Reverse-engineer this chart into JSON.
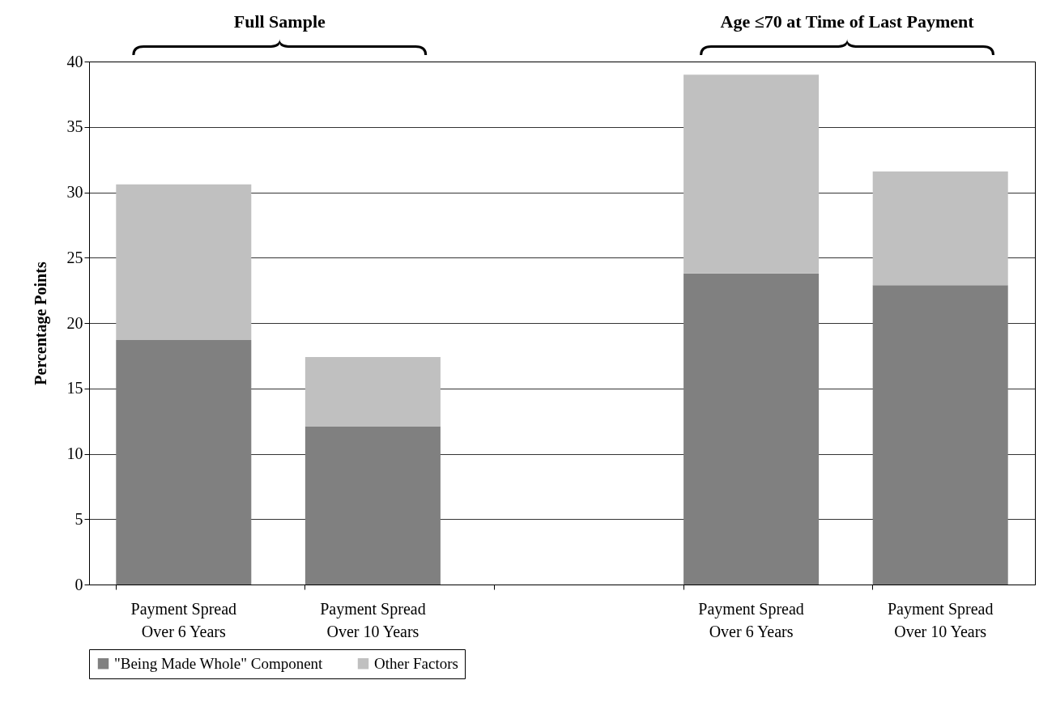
{
  "chart_data": {
    "type": "bar",
    "stacked": true,
    "ylabel": "Percentage Points",
    "annotations": [
      "Full Sample",
      "Age ≤70 at Time of Last Payment"
    ],
    "categories": [
      "Payment Spread\nOver 6 Years",
      "Payment Spread\nOver 10 Years",
      null,
      "Payment Spread\nOver 6 Years",
      "Payment Spread\nOver 10 Years"
    ],
    "series": [
      {
        "name": "\"Being Made Whole\" Component",
        "color": "#808080",
        "values": [
          18.7,
          12.1,
          null,
          23.8,
          22.9
        ]
      },
      {
        "name": "Other Factors",
        "color": "#c0c0c0",
        "values": [
          11.9,
          5.3,
          null,
          15.2,
          8.7
        ]
      }
    ],
    "ylim": [
      0,
      40
    ],
    "yticks": [
      0,
      5,
      10,
      15,
      20,
      25,
      30,
      35,
      40
    ],
    "grid": "y",
    "legend": "bottom"
  }
}
